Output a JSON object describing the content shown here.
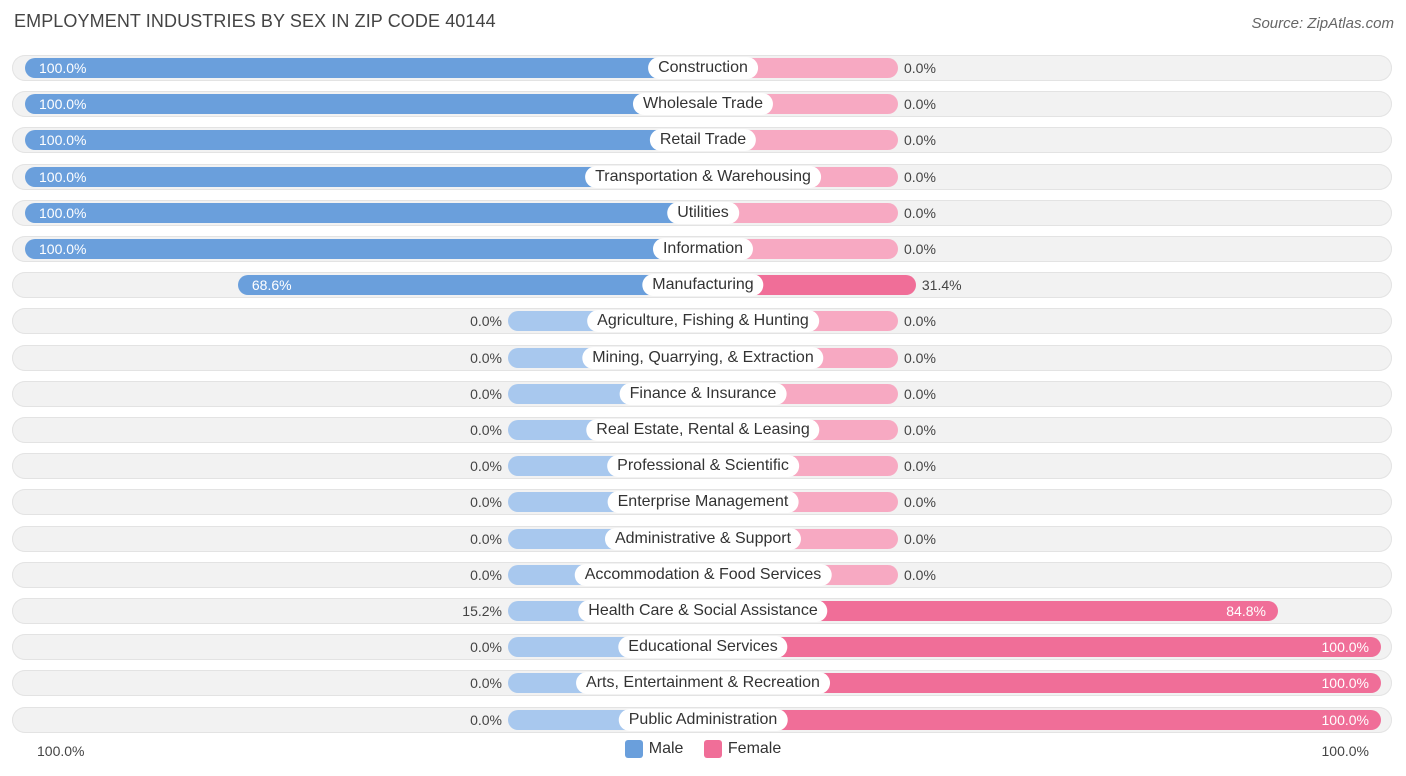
{
  "chart_data": {
    "type": "bar",
    "orientation": "horizontal-diverging",
    "title": "EMPLOYMENT INDUSTRIES BY SEX IN ZIP CODE 40144",
    "source": "Source: ZipAtlas.com",
    "categories": [
      "Construction",
      "Wholesale Trade",
      "Retail Trade",
      "Transportation & Warehousing",
      "Utilities",
      "Information",
      "Manufacturing",
      "Agriculture, Fishing & Hunting",
      "Mining, Quarrying, & Extraction",
      "Finance & Insurance",
      "Real Estate, Rental & Leasing",
      "Professional & Scientific",
      "Enterprise Management",
      "Administrative & Support",
      "Accommodation & Food Services",
      "Health Care & Social Assistance",
      "Educational Services",
      "Arts, Entertainment & Recreation",
      "Public Administration"
    ],
    "series": [
      {
        "name": "Male",
        "color": "#6a9fdc",
        "values": [
          100.0,
          100.0,
          100.0,
          100.0,
          100.0,
          100.0,
          68.6,
          0.0,
          0.0,
          0.0,
          0.0,
          0.0,
          0.0,
          0.0,
          0.0,
          15.2,
          0.0,
          0.0,
          0.0
        ],
        "labels": [
          "100.0%",
          "100.0%",
          "100.0%",
          "100.0%",
          "100.0%",
          "100.0%",
          "68.6%",
          "0.0%",
          "0.0%",
          "0.0%",
          "0.0%",
          "0.0%",
          "0.0%",
          "0.0%",
          "0.0%",
          "15.2%",
          "0.0%",
          "0.0%",
          "0.0%"
        ]
      },
      {
        "name": "Female",
        "color": "#f06e98",
        "values": [
          0.0,
          0.0,
          0.0,
          0.0,
          0.0,
          0.0,
          31.4,
          0.0,
          0.0,
          0.0,
          0.0,
          0.0,
          0.0,
          0.0,
          0.0,
          84.8,
          100.0,
          100.0,
          100.0
        ],
        "labels": [
          "0.0%",
          "0.0%",
          "0.0%",
          "0.0%",
          "0.0%",
          "0.0%",
          "31.4%",
          "0.0%",
          "0.0%",
          "0.0%",
          "0.0%",
          "0.0%",
          "0.0%",
          "0.0%",
          "0.0%",
          "84.8%",
          "100.0%",
          "100.0%",
          "100.0%"
        ]
      }
    ],
    "xlim": [
      -100,
      100
    ],
    "axis_left_label": "100.0%",
    "axis_right_label": "100.0%",
    "legend": [
      "Male",
      "Female"
    ],
    "legend_position": "bottom-center",
    "colors": {
      "male_strong": "#6a9fdc",
      "male_light": "#a8c8ee",
      "female_strong": "#f06e98",
      "female_light": "#f7a9c2",
      "row_background": "#f2f2f2"
    }
  }
}
